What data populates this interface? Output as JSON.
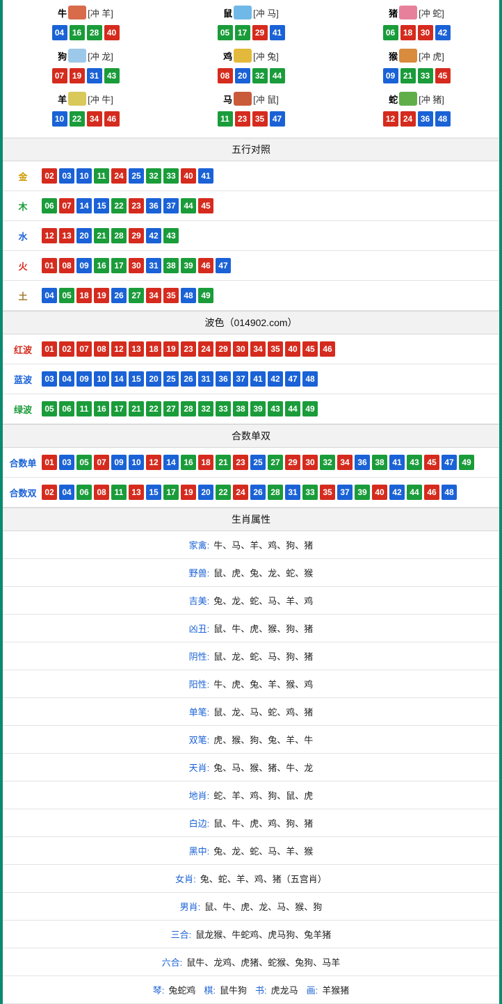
{
  "colors": {
    "red": "#d52b1e",
    "blue": "#1a62d6",
    "green": "#1a9c3a",
    "border": "#0a8b6f",
    "label_gold": "#cc9a00",
    "label_green": "#1a9c3a",
    "label_blue": "#1a62d6",
    "label_red": "#d52b1e",
    "label_brown": "#a37b2c"
  },
  "zodiac": [
    {
      "name": "牛",
      "conflict": "[冲 羊]",
      "icon_color": "#d86b4a",
      "balls": [
        {
          "n": "04",
          "c": "blue"
        },
        {
          "n": "16",
          "c": "green"
        },
        {
          "n": "28",
          "c": "green"
        },
        {
          "n": "40",
          "c": "red"
        }
      ]
    },
    {
      "name": "鼠",
      "conflict": "[冲 马]",
      "icon_color": "#6fb8e8",
      "balls": [
        {
          "n": "05",
          "c": "green"
        },
        {
          "n": "17",
          "c": "green"
        },
        {
          "n": "29",
          "c": "red"
        },
        {
          "n": "41",
          "c": "blue"
        }
      ]
    },
    {
      "name": "猪",
      "conflict": "[冲 蛇]",
      "icon_color": "#e7819b",
      "balls": [
        {
          "n": "06",
          "c": "green"
        },
        {
          "n": "18",
          "c": "red"
        },
        {
          "n": "30",
          "c": "red"
        },
        {
          "n": "42",
          "c": "blue"
        }
      ]
    },
    {
      "name": "狗",
      "conflict": "[冲 龙]",
      "icon_color": "#9cc8ea",
      "balls": [
        {
          "n": "07",
          "c": "red"
        },
        {
          "n": "19",
          "c": "red"
        },
        {
          "n": "31",
          "c": "blue"
        },
        {
          "n": "43",
          "c": "green"
        }
      ]
    },
    {
      "name": "鸡",
      "conflict": "[冲 兔]",
      "icon_color": "#e2b93a",
      "balls": [
        {
          "n": "08",
          "c": "red"
        },
        {
          "n": "20",
          "c": "blue"
        },
        {
          "n": "32",
          "c": "green"
        },
        {
          "n": "44",
          "c": "green"
        }
      ]
    },
    {
      "name": "猴",
      "conflict": "[冲 虎]",
      "icon_color": "#d98b3e",
      "balls": [
        {
          "n": "09",
          "c": "blue"
        },
        {
          "n": "21",
          "c": "green"
        },
        {
          "n": "33",
          "c": "green"
        },
        {
          "n": "45",
          "c": "red"
        }
      ]
    },
    {
      "name": "羊",
      "conflict": "[冲 牛]",
      "icon_color": "#d9c85a",
      "balls": [
        {
          "n": "10",
          "c": "blue"
        },
        {
          "n": "22",
          "c": "green"
        },
        {
          "n": "34",
          "c": "red"
        },
        {
          "n": "46",
          "c": "red"
        }
      ]
    },
    {
      "name": "马",
      "conflict": "[冲 鼠]",
      "icon_color": "#c95a3a",
      "balls": [
        {
          "n": "11",
          "c": "green"
        },
        {
          "n": "23",
          "c": "red"
        },
        {
          "n": "35",
          "c": "red"
        },
        {
          "n": "47",
          "c": "blue"
        }
      ]
    },
    {
      "name": "蛇",
      "conflict": "[冲 猪]",
      "icon_color": "#5fae4a",
      "balls": [
        {
          "n": "12",
          "c": "red"
        },
        {
          "n": "24",
          "c": "red"
        },
        {
          "n": "36",
          "c": "blue"
        },
        {
          "n": "48",
          "c": "blue"
        }
      ]
    }
  ],
  "sections": {
    "wuxing": {
      "title": "五行对照",
      "rows": [
        {
          "label": "金",
          "label_color": "#cc9a00",
          "balls": [
            {
              "n": "02",
              "c": "red"
            },
            {
              "n": "03",
              "c": "blue"
            },
            {
              "n": "10",
              "c": "blue"
            },
            {
              "n": "11",
              "c": "green"
            },
            {
              "n": "24",
              "c": "red"
            },
            {
              "n": "25",
              "c": "blue"
            },
            {
              "n": "32",
              "c": "green"
            },
            {
              "n": "33",
              "c": "green"
            },
            {
              "n": "40",
              "c": "red"
            },
            {
              "n": "41",
              "c": "blue"
            }
          ]
        },
        {
          "label": "木",
          "label_color": "#1a9c3a",
          "balls": [
            {
              "n": "06",
              "c": "green"
            },
            {
              "n": "07",
              "c": "red"
            },
            {
              "n": "14",
              "c": "blue"
            },
            {
              "n": "15",
              "c": "blue"
            },
            {
              "n": "22",
              "c": "green"
            },
            {
              "n": "23",
              "c": "red"
            },
            {
              "n": "36",
              "c": "blue"
            },
            {
              "n": "37",
              "c": "blue"
            },
            {
              "n": "44",
              "c": "green"
            },
            {
              "n": "45",
              "c": "red"
            }
          ]
        },
        {
          "label": "水",
          "label_color": "#1a62d6",
          "balls": [
            {
              "n": "12",
              "c": "red"
            },
            {
              "n": "13",
              "c": "red"
            },
            {
              "n": "20",
              "c": "blue"
            },
            {
              "n": "21",
              "c": "green"
            },
            {
              "n": "28",
              "c": "green"
            },
            {
              "n": "29",
              "c": "red"
            },
            {
              "n": "42",
              "c": "blue"
            },
            {
              "n": "43",
              "c": "green"
            }
          ]
        },
        {
          "label": "火",
          "label_color": "#d52b1e",
          "balls": [
            {
              "n": "01",
              "c": "red"
            },
            {
              "n": "08",
              "c": "red"
            },
            {
              "n": "09",
              "c": "blue"
            },
            {
              "n": "16",
              "c": "green"
            },
            {
              "n": "17",
              "c": "green"
            },
            {
              "n": "30",
              "c": "red"
            },
            {
              "n": "31",
              "c": "blue"
            },
            {
              "n": "38",
              "c": "green"
            },
            {
              "n": "39",
              "c": "green"
            },
            {
              "n": "46",
              "c": "red"
            },
            {
              "n": "47",
              "c": "blue"
            }
          ]
        },
        {
          "label": "土",
          "label_color": "#a37b2c",
          "balls": [
            {
              "n": "04",
              "c": "blue"
            },
            {
              "n": "05",
              "c": "green"
            },
            {
              "n": "18",
              "c": "red"
            },
            {
              "n": "19",
              "c": "red"
            },
            {
              "n": "26",
              "c": "blue"
            },
            {
              "n": "27",
              "c": "green"
            },
            {
              "n": "34",
              "c": "red"
            },
            {
              "n": "35",
              "c": "red"
            },
            {
              "n": "48",
              "c": "blue"
            },
            {
              "n": "49",
              "c": "green"
            }
          ]
        }
      ]
    },
    "bose": {
      "title": "波色（014902.com）",
      "rows": [
        {
          "label": "红波",
          "label_color": "#d52b1e",
          "balls": [
            {
              "n": "01",
              "c": "red"
            },
            {
              "n": "02",
              "c": "red"
            },
            {
              "n": "07",
              "c": "red"
            },
            {
              "n": "08",
              "c": "red"
            },
            {
              "n": "12",
              "c": "red"
            },
            {
              "n": "13",
              "c": "red"
            },
            {
              "n": "18",
              "c": "red"
            },
            {
              "n": "19",
              "c": "red"
            },
            {
              "n": "23",
              "c": "red"
            },
            {
              "n": "24",
              "c": "red"
            },
            {
              "n": "29",
              "c": "red"
            },
            {
              "n": "30",
              "c": "red"
            },
            {
              "n": "34",
              "c": "red"
            },
            {
              "n": "35",
              "c": "red"
            },
            {
              "n": "40",
              "c": "red"
            },
            {
              "n": "45",
              "c": "red"
            },
            {
              "n": "46",
              "c": "red"
            }
          ]
        },
        {
          "label": "蓝波",
          "label_color": "#1a62d6",
          "balls": [
            {
              "n": "03",
              "c": "blue"
            },
            {
              "n": "04",
              "c": "blue"
            },
            {
              "n": "09",
              "c": "blue"
            },
            {
              "n": "10",
              "c": "blue"
            },
            {
              "n": "14",
              "c": "blue"
            },
            {
              "n": "15",
              "c": "blue"
            },
            {
              "n": "20",
              "c": "blue"
            },
            {
              "n": "25",
              "c": "blue"
            },
            {
              "n": "26",
              "c": "blue"
            },
            {
              "n": "31",
              "c": "blue"
            },
            {
              "n": "36",
              "c": "blue"
            },
            {
              "n": "37",
              "c": "blue"
            },
            {
              "n": "41",
              "c": "blue"
            },
            {
              "n": "42",
              "c": "blue"
            },
            {
              "n": "47",
              "c": "blue"
            },
            {
              "n": "48",
              "c": "blue"
            }
          ]
        },
        {
          "label": "绿波",
          "label_color": "#1a9c3a",
          "balls": [
            {
              "n": "05",
              "c": "green"
            },
            {
              "n": "06",
              "c": "green"
            },
            {
              "n": "11",
              "c": "green"
            },
            {
              "n": "16",
              "c": "green"
            },
            {
              "n": "17",
              "c": "green"
            },
            {
              "n": "21",
              "c": "green"
            },
            {
              "n": "22",
              "c": "green"
            },
            {
              "n": "27",
              "c": "green"
            },
            {
              "n": "28",
              "c": "green"
            },
            {
              "n": "32",
              "c": "green"
            },
            {
              "n": "33",
              "c": "green"
            },
            {
              "n": "38",
              "c": "green"
            },
            {
              "n": "39",
              "c": "green"
            },
            {
              "n": "43",
              "c": "green"
            },
            {
              "n": "44",
              "c": "green"
            },
            {
              "n": "49",
              "c": "green"
            }
          ]
        }
      ]
    },
    "heshu": {
      "title": "合数单双",
      "rows": [
        {
          "label": "合数单",
          "label_color": "#1a62d6",
          "balls": [
            {
              "n": "01",
              "c": "red"
            },
            {
              "n": "03",
              "c": "blue"
            },
            {
              "n": "05",
              "c": "green"
            },
            {
              "n": "07",
              "c": "red"
            },
            {
              "n": "09",
              "c": "blue"
            },
            {
              "n": "10",
              "c": "blue"
            },
            {
              "n": "12",
              "c": "red"
            },
            {
              "n": "14",
              "c": "blue"
            },
            {
              "n": "16",
              "c": "green"
            },
            {
              "n": "18",
              "c": "red"
            },
            {
              "n": "21",
              "c": "green"
            },
            {
              "n": "23",
              "c": "red"
            },
            {
              "n": "25",
              "c": "blue"
            },
            {
              "n": "27",
              "c": "green"
            },
            {
              "n": "29",
              "c": "red"
            },
            {
              "n": "30",
              "c": "red"
            },
            {
              "n": "32",
              "c": "green"
            },
            {
              "n": "34",
              "c": "red"
            },
            {
              "n": "36",
              "c": "blue"
            },
            {
              "n": "38",
              "c": "green"
            },
            {
              "n": "41",
              "c": "blue"
            },
            {
              "n": "43",
              "c": "green"
            },
            {
              "n": "45",
              "c": "red"
            },
            {
              "n": "47",
              "c": "blue"
            },
            {
              "n": "49",
              "c": "green"
            }
          ]
        },
        {
          "label": "合数双",
          "label_color": "#1a62d6",
          "balls": [
            {
              "n": "02",
              "c": "red"
            },
            {
              "n": "04",
              "c": "blue"
            },
            {
              "n": "06",
              "c": "green"
            },
            {
              "n": "08",
              "c": "red"
            },
            {
              "n": "11",
              "c": "green"
            },
            {
              "n": "13",
              "c": "red"
            },
            {
              "n": "15",
              "c": "blue"
            },
            {
              "n": "17",
              "c": "green"
            },
            {
              "n": "19",
              "c": "red"
            },
            {
              "n": "20",
              "c": "blue"
            },
            {
              "n": "22",
              "c": "green"
            },
            {
              "n": "24",
              "c": "red"
            },
            {
              "n": "26",
              "c": "blue"
            },
            {
              "n": "28",
              "c": "green"
            },
            {
              "n": "31",
              "c": "blue"
            },
            {
              "n": "33",
              "c": "green"
            },
            {
              "n": "35",
              "c": "red"
            },
            {
              "n": "37",
              "c": "blue"
            },
            {
              "n": "39",
              "c": "green"
            },
            {
              "n": "40",
              "c": "red"
            },
            {
              "n": "42",
              "c": "blue"
            },
            {
              "n": "44",
              "c": "green"
            },
            {
              "n": "46",
              "c": "red"
            },
            {
              "n": "48",
              "c": "blue"
            }
          ]
        }
      ]
    },
    "shuxing": {
      "title": "生肖属性",
      "rows": [
        {
          "label": "家禽:",
          "label_color": "#1a62d6",
          "value": "牛、马、羊、鸡、狗、猪"
        },
        {
          "label": "野兽:",
          "label_color": "#1a62d6",
          "value": "鼠、虎、兔、龙、蛇、猴"
        },
        {
          "label": "吉美:",
          "label_color": "#1a62d6",
          "value": "兔、龙、蛇、马、羊、鸡"
        },
        {
          "label": "凶丑:",
          "label_color": "#1a62d6",
          "value": "鼠、牛、虎、猴、狗、猪"
        },
        {
          "label": "阴性:",
          "label_color": "#1a62d6",
          "value": "鼠、龙、蛇、马、狗、猪"
        },
        {
          "label": "阳性:",
          "label_color": "#1a62d6",
          "value": "牛、虎、兔、羊、猴、鸡"
        },
        {
          "label": "单笔:",
          "label_color": "#1a62d6",
          "value": "鼠、龙、马、蛇、鸡、猪"
        },
        {
          "label": "双笔:",
          "label_color": "#1a62d6",
          "value": "虎、猴、狗、兔、羊、牛"
        },
        {
          "label": "天肖:",
          "label_color": "#1a62d6",
          "value": "兔、马、猴、猪、牛、龙"
        },
        {
          "label": "地肖:",
          "label_color": "#1a62d6",
          "value": "蛇、羊、鸡、狗、鼠、虎"
        },
        {
          "label": "白边:",
          "label_color": "#1a62d6",
          "value": "鼠、牛、虎、鸡、狗、猪"
        },
        {
          "label": "黑中:",
          "label_color": "#1a62d6",
          "value": "兔、龙、蛇、马、羊、猴"
        },
        {
          "label": "女肖:",
          "label_color": "#1a62d6",
          "value": "兔、蛇、羊、鸡、猪（五宫肖）"
        },
        {
          "label": "男肖:",
          "label_color": "#1a62d6",
          "value": "鼠、牛、虎、龙、马、猴、狗"
        },
        {
          "label": "三合:",
          "label_color": "#1a62d6",
          "value": "鼠龙猴、牛蛇鸡、虎马狗、兔羊猪"
        },
        {
          "label": "六合:",
          "label_color": "#1a62d6",
          "value": "鼠牛、龙鸡、虎猪、蛇猴、兔狗、马羊"
        }
      ],
      "footer": {
        "parts": [
          {
            "label": "琴:",
            "label_color": "#1a62d6",
            "value": "兔蛇鸡"
          },
          {
            "label": "棋:",
            "label_color": "#1a62d6",
            "value": "鼠牛狗"
          },
          {
            "label": "书:",
            "label_color": "#1a62d6",
            "value": "虎龙马"
          },
          {
            "label": "画:",
            "label_color": "#1a62d6",
            "value": "羊猴猪"
          }
        ]
      }
    }
  }
}
